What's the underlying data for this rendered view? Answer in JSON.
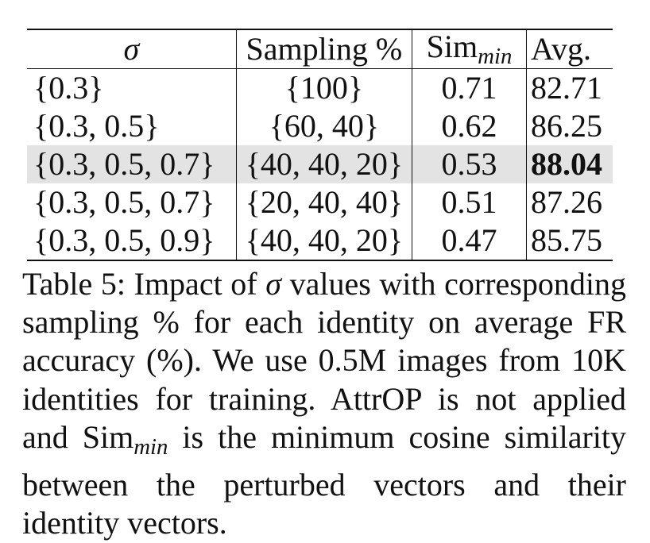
{
  "table": {
    "headers": {
      "sigma": "σ",
      "sampling": "Sampling %",
      "sim_base": "Sim",
      "sim_sub": "min",
      "avg": "Avg."
    },
    "rows": [
      {
        "sigma": "{0.3}",
        "sampling": "{100}",
        "sim": "0.71",
        "avg": "82.71"
      },
      {
        "sigma": "{0.3, 0.5}",
        "sampling": "{60, 40}",
        "sim": "0.62",
        "avg": "86.25"
      },
      {
        "sigma": "{0.3, 0.5, 0.7}",
        "sampling": "{40, 40, 20}",
        "sim": "0.53",
        "avg": "88.04"
      },
      {
        "sigma": "{0.3, 0.5, 0.7}",
        "sampling": "{20, 40, 40}",
        "sim": "0.51",
        "avg": "87.26"
      },
      {
        "sigma": "{0.3, 0.5, 0.9}",
        "sampling": "{40, 40, 20}",
        "sim": "0.47",
        "avg": "85.75"
      }
    ],
    "highlight_row_bg": "#e3e3e3"
  },
  "caption": {
    "part1": "Table 5: Impact of ",
    "sigma": "σ",
    "part2": " values with corresponding sampling % for each identity on average FR accuracy (%). We use 0.5M images from 10K identities for training.  AttrOP is not applied and ",
    "sim_base": "Sim",
    "sim_sub": "min",
    "part3": " is the minimum cosine similarity between the perturbed vectors and their identity vectors."
  }
}
